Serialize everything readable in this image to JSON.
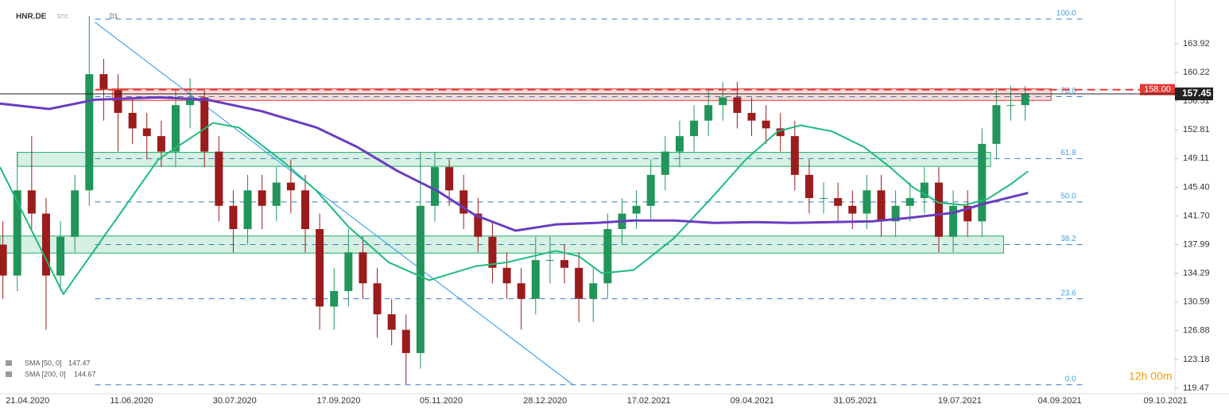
{
  "header": {
    "symbol": "HNR.DE",
    "source": "STC",
    "timeframe": "D1"
  },
  "timer": "12h 00m",
  "chart_data": {
    "type": "candlestick",
    "xlim": [
      0,
      408
    ],
    "ylim": [
      118.75,
      169.57
    ],
    "xticks": [
      {
        "value": 9.6,
        "label": "21.04.2020"
      },
      {
        "value": 45.7,
        "label": "11.06.2020"
      },
      {
        "value": 81.5,
        "label": "30.07.2020"
      },
      {
        "value": 117.6,
        "label": "17.09.2020"
      },
      {
        "value": 153.2,
        "label": "05.11.2020"
      },
      {
        "value": 189.3,
        "label": "28.12.2020"
      },
      {
        "value": 225.3,
        "label": "17.02.2021"
      },
      {
        "value": 261.2,
        "label": "09.04.2021"
      },
      {
        "value": 297,
        "label": "31.05.2021"
      },
      {
        "value": 333.3,
        "label": "19.07.2021"
      },
      {
        "value": 368,
        "label": "04.09.2021"
      },
      {
        "value": 404.7,
        "label": "09.10.2021"
      }
    ],
    "yticks": [
      163.92,
      {
        "value": 160.22,
        "label": "160.22"
      },
      156.51,
      152.81,
      149.11,
      {
        "value": 145.4,
        "label": "145.40"
      },
      {
        "value": 141.7,
        "label": "141.70"
      },
      137.99,
      134.29,
      130.59,
      126.88,
      123.18,
      119.47
    ],
    "x": [
      1,
      6,
      11,
      16,
      21,
      26,
      31,
      36,
      41,
      46,
      51,
      56,
      61,
      66,
      71,
      76,
      81,
      86,
      91,
      96,
      101,
      106,
      111,
      116,
      121,
      126,
      131,
      136,
      141,
      146,
      151,
      156,
      161,
      166,
      171,
      176,
      181,
      186,
      191,
      196,
      201,
      206,
      211,
      216,
      221,
      226,
      231,
      236,
      241,
      246,
      251,
      256,
      261,
      266,
      271,
      276,
      281,
      286,
      291,
      296,
      301,
      306,
      311,
      316,
      321,
      326,
      331,
      336,
      341,
      346,
      351,
      356
    ],
    "open": [
      138,
      134,
      145,
      142,
      134,
      139,
      145,
      160,
      158,
      155,
      153,
      152,
      150,
      156,
      157,
      150,
      143,
      140,
      145,
      143,
      146,
      145,
      140,
      130,
      132,
      137,
      133,
      129,
      127,
      124,
      143,
      148,
      145,
      142,
      139,
      135,
      133,
      131,
      136,
      136,
      135,
      131,
      133,
      140,
      142,
      143,
      147,
      150,
      152,
      154,
      156,
      157,
      155,
      154,
      153,
      152,
      147,
      144,
      144,
      143,
      142,
      145,
      141,
      143,
      144,
      146,
      139,
      143,
      141,
      151,
      156,
      156
    ],
    "high": [
      141,
      150,
      152,
      144,
      141,
      147,
      167.5,
      162,
      160,
      157,
      155,
      154,
      158,
      159.5,
      158,
      152,
      145,
      147,
      147,
      148,
      149,
      147,
      142,
      135,
      140,
      139,
      135,
      131,
      129,
      150,
      150,
      149,
      147,
      144,
      141,
      137,
      135,
      139,
      139,
      138,
      137,
      135,
      142,
      144,
      145,
      149,
      152,
      154,
      156,
      158,
      159,
      159,
      157,
      156,
      155,
      154,
      149,
      146,
      146,
      145,
      147,
      147,
      145,
      146,
      148,
      148,
      145,
      145,
      153,
      158,
      158.5,
      158.5
    ],
    "low": [
      131,
      132,
      140,
      127,
      132,
      137,
      143,
      154,
      150,
      151,
      149,
      148,
      148,
      153,
      148,
      141,
      137,
      138,
      140,
      141,
      142,
      137,
      127,
      127,
      130,
      131,
      126,
      125,
      120,
      122,
      141,
      143,
      140,
      137,
      133,
      131,
      127,
      129,
      133,
      133,
      128,
      128,
      131,
      138,
      140,
      141,
      145,
      148,
      150,
      152,
      154,
      153,
      152,
      151,
      150,
      145,
      142,
      142,
      141,
      140,
      140,
      139,
      139,
      141,
      142,
      137,
      137,
      139,
      139,
      149,
      154,
      154
    ],
    "close": [
      134,
      145,
      142,
      134,
      139,
      145,
      160,
      158,
      155,
      153,
      152,
      150,
      156,
      157,
      150,
      143,
      140,
      145,
      143,
      146,
      145,
      140,
      130,
      132,
      137,
      133,
      129,
      127,
      124,
      143,
      148,
      145,
      142,
      139,
      135,
      133,
      131,
      136,
      136,
      135,
      131,
      133,
      140,
      142,
      143,
      147,
      150,
      152,
      154,
      156,
      157,
      155,
      154,
      153,
      152,
      147,
      144,
      144,
      143,
      142,
      145,
      141,
      143,
      144,
      146,
      139,
      143,
      141,
      151,
      156,
      156,
      157.45
    ],
    "up_color": "#22955a",
    "down_color": "#9b1c1c",
    "series": [
      {
        "name": "SMA [50, 0]",
        "color": "#1dbb7c",
        "legend_value": 147.47,
        "x": [
          0,
          22,
          55,
          74,
          83,
          99,
          110,
          121,
          135,
          149,
          165,
          176,
          193,
          201,
          209,
          220,
          234,
          248,
          259,
          270,
          278,
          289,
          300,
          309,
          317,
          326,
          335,
          343,
          351,
          357
        ],
        "values": [
          148.0,
          131.6,
          149.0,
          153.7,
          153.1,
          148.5,
          144.9,
          140.3,
          135.7,
          133.4,
          135.2,
          135.7,
          137.2,
          136.5,
          134.3,
          134.7,
          138.8,
          144.4,
          149.0,
          152.6,
          153.4,
          152.6,
          150.6,
          148.0,
          145.4,
          143.4,
          143.1,
          143.9,
          145.8,
          147.47
        ]
      },
      {
        "name": "SMA [200, 0]",
        "color": "#6a3cc2",
        "legend_value": 144.67,
        "x": [
          0,
          17,
          33,
          55,
          72,
          91,
          110,
          124,
          138,
          152,
          165,
          179,
          193,
          207,
          220,
          234,
          248,
          262,
          275,
          289,
          303,
          317,
          331,
          342,
          357
        ],
        "values": [
          156.2,
          155.5,
          156.7,
          157.0,
          156.7,
          155.2,
          153.1,
          150.6,
          147.5,
          144.9,
          141.8,
          139.8,
          140.6,
          140.8,
          141.1,
          141.1,
          140.8,
          140.9,
          140.8,
          140.9,
          141.0,
          141.5,
          142.1,
          143.3,
          144.67
        ]
      }
    ],
    "zones": [
      {
        "x": [
          39,
          365
        ],
        "y": [
          156.6,
          158.1
        ],
        "color": "#e53935"
      },
      {
        "x": [
          6,
          344
        ],
        "y": [
          148.1,
          149.9
        ],
        "color": "#1fae6a"
      },
      {
        "x": [
          0,
          348.5
        ],
        "y": [
          136.9,
          139.1
        ],
        "color": "#1fae6a"
      }
    ],
    "trendline": {
      "x": [
        33,
        199
      ],
      "y": [
        166.7,
        119.9
      ],
      "color": "#2196f3"
    },
    "fib_x": [
      33,
      377
    ],
    "fib_levels": [
      {
        "label": "100.0",
        "price": 167.1
      },
      {
        "label": "78.6",
        "price": 157.1
      },
      {
        "label": "61.8",
        "price": 149.1
      },
      {
        "label": "50.0",
        "price": 143.5
      },
      {
        "label": "38.2",
        "price": 138.0
      },
      {
        "label": "23.6",
        "price": 131.0
      },
      {
        "label": "0.0",
        "price": 119.9
      }
    ],
    "alert": {
      "value": 158,
      "label": "158.00",
      "color": "#e53935"
    },
    "last_price": 157.45
  }
}
